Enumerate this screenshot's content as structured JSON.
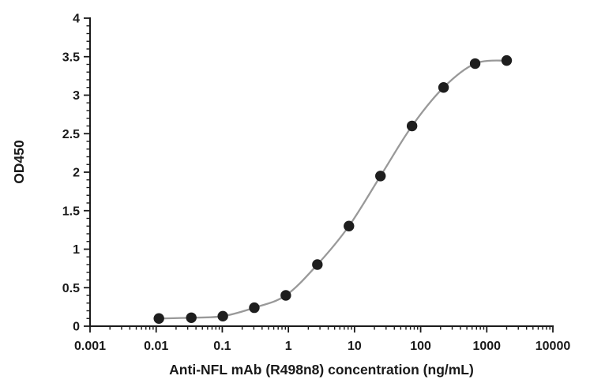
{
  "chart_data": {
    "type": "line",
    "title": "",
    "xlabel": "Anti-NFL mAb (R498n8) concentration (ng/mL)",
    "ylabel": "OD450",
    "x_scale": "log",
    "y_scale": "linear",
    "xlim": [
      0.001,
      10000
    ],
    "ylim": [
      0,
      4
    ],
    "x_major_ticks": [
      0.001,
      0.01,
      0.1,
      1,
      10,
      100,
      1000,
      10000
    ],
    "x_tick_labels": [
      "0.001",
      "0.01",
      "0.1",
      "1",
      "10",
      "100",
      "1000",
      "10000"
    ],
    "y_major_ticks": [
      0,
      0.5,
      1,
      1.5,
      2,
      2.5,
      3,
      3.5,
      4
    ],
    "y_tick_labels": [
      "0",
      "0.5",
      "1",
      "1.5",
      "2",
      "2.5",
      "3",
      "3.5",
      "4"
    ],
    "y_minor_tick_step": 0.1,
    "grid": false,
    "legend": "none",
    "series": [
      {
        "name": "Anti-NFL mAb (R498n8)",
        "x": [
          0.011,
          0.034,
          0.102,
          0.305,
          0.914,
          2.743,
          8.23,
          24.69,
          74.07,
          222.2,
          666.7,
          2000
        ],
        "y": [
          0.1,
          0.11,
          0.13,
          0.24,
          0.4,
          0.8,
          1.3,
          1.95,
          2.6,
          3.1,
          3.41,
          3.45
        ],
        "marker": "circle",
        "marker_color": "#1e1e1e",
        "line_color": "#999999"
      }
    ],
    "axis_color": "#1a1a1a",
    "background_color": "#ffffff"
  }
}
